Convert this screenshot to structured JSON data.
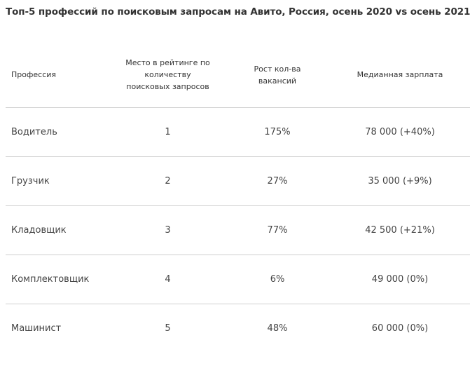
{
  "title": "Топ-5 профессий по поисковым запросам на Авито, Россия, осень 2020 vs осень 2021",
  "table": {
    "headers": [
      "Профессия",
      "Место в рейтинге по\nколичеству\nпоисковых запросов",
      "Рост кол-ва\nвакансий",
      "Медианная зарплата"
    ],
    "rows": [
      [
        "Водитель",
        "1",
        "175%",
        "78 000 (+40%)"
      ],
      [
        "Грузчик",
        "2",
        "27%",
        "35 000 (+9%)"
      ],
      [
        "Кладовщик",
        "3",
        "77%",
        "42 500 (+21%)"
      ],
      [
        "Комплектовщик",
        "4",
        "6%",
        "49 000 (0%)"
      ],
      [
        "Машинист",
        "5",
        "48%",
        "60 000 (0%)"
      ]
    ]
  }
}
